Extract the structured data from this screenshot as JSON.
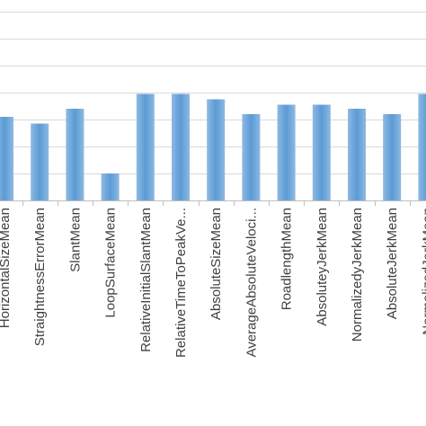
{
  "chart_data": {
    "type": "bar",
    "categories": [
      "HorizontalSizeMean",
      "StraightnessErrorMean",
      "SlantMean",
      "LoopSurfaceMean",
      "RelativeInitialSlantMean",
      "RelativeTimeToPeakVe...",
      "AbsoluteSizeMean",
      "AverageAbsoluteVeloci...",
      "RoadlengthMean",
      "AbsoluteyJerkMean",
      "NormalizedyJerkMean",
      "AbsoluteJerkMean",
      "NormalizedJerkMean"
    ],
    "values": [
      0.62,
      0.57,
      0.68,
      0.2,
      0.79,
      0.79,
      0.75,
      0.64,
      0.71,
      0.71,
      0.68,
      0.64,
      0.79
    ],
    "ylim": [
      0,
      1.4
    ],
    "grid": true,
    "bar_color": "#5b9bd5",
    "bar_color_light": "#8db9e3",
    "gridline_color": "#d9d9d9",
    "axis_color": "#bfbfbf"
  }
}
